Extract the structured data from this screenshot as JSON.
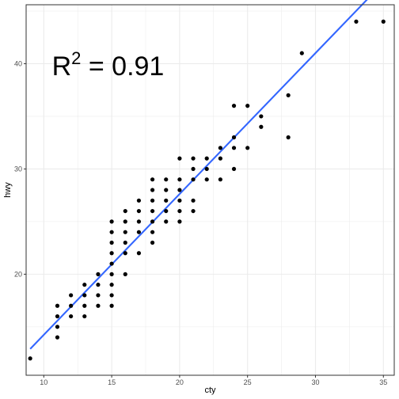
{
  "chart_data": {
    "type": "scatter",
    "xlabel": "cty",
    "ylabel": "hwy",
    "xlim": [
      8.7,
      35.8
    ],
    "ylim": [
      10.4,
      45.6
    ],
    "x_ticks": [
      10,
      15,
      20,
      25,
      30,
      35
    ],
    "y_ticks": [
      20,
      30,
      40
    ],
    "x_tick_labels": [
      "10",
      "15",
      "20",
      "25",
      "30",
      "35"
    ],
    "y_tick_labels": [
      "20",
      "30",
      "40"
    ],
    "grid": true,
    "points": [
      [
        9,
        12
      ],
      [
        11,
        14
      ],
      [
        11,
        15
      ],
      [
        11,
        16
      ],
      [
        11,
        17
      ],
      [
        12,
        16
      ],
      [
        12,
        17
      ],
      [
        12,
        18
      ],
      [
        13,
        16
      ],
      [
        13,
        17
      ],
      [
        13,
        18
      ],
      [
        13,
        19
      ],
      [
        14,
        17
      ],
      [
        14,
        18
      ],
      [
        14,
        19
      ],
      [
        14,
        20
      ],
      [
        15,
        17
      ],
      [
        15,
        18
      ],
      [
        15,
        19
      ],
      [
        15,
        20
      ],
      [
        15,
        21
      ],
      [
        15,
        22
      ],
      [
        15,
        23
      ],
      [
        15,
        24
      ],
      [
        15,
        25
      ],
      [
        16,
        20
      ],
      [
        16,
        22
      ],
      [
        16,
        23
      ],
      [
        16,
        24
      ],
      [
        16,
        25
      ],
      [
        16,
        26
      ],
      [
        17,
        22
      ],
      [
        17,
        24
      ],
      [
        17,
        25
      ],
      [
        17,
        26
      ],
      [
        17,
        27
      ],
      [
        18,
        23
      ],
      [
        18,
        24
      ],
      [
        18,
        25
      ],
      [
        18,
        26
      ],
      [
        18,
        27
      ],
      [
        18,
        28
      ],
      [
        18,
        29
      ],
      [
        19,
        25
      ],
      [
        19,
        26
      ],
      [
        19,
        27
      ],
      [
        19,
        28
      ],
      [
        19,
        29
      ],
      [
        20,
        25
      ],
      [
        20,
        26
      ],
      [
        20,
        27
      ],
      [
        20,
        28
      ],
      [
        20,
        29
      ],
      [
        20,
        31
      ],
      [
        21,
        26
      ],
      [
        21,
        27
      ],
      [
        21,
        29
      ],
      [
        21,
        30
      ],
      [
        21,
        31
      ],
      [
        22,
        29
      ],
      [
        22,
        30
      ],
      [
        22,
        31
      ],
      [
        23,
        29
      ],
      [
        23,
        31
      ],
      [
        23,
        32
      ],
      [
        24,
        30
      ],
      [
        24,
        32
      ],
      [
        24,
        33
      ],
      [
        24,
        36
      ],
      [
        25,
        32
      ],
      [
        25,
        36
      ],
      [
        26,
        34
      ],
      [
        26,
        35
      ],
      [
        28,
        33
      ],
      [
        28,
        37
      ],
      [
        29,
        41
      ],
      [
        33,
        44
      ],
      [
        35,
        44
      ]
    ],
    "fit_line": {
      "x": [
        9,
        35
      ],
      "y": [
        12.9,
        47.7
      ]
    },
    "annotation": {
      "base": "R",
      "superscript": "2",
      "rest": " = 0.91",
      "x": 10.6,
      "y": 39.8
    },
    "colors": {
      "points": "#000000",
      "line": "#3366ff",
      "grid": "#ebebeb",
      "panel_border": "#333333"
    }
  }
}
